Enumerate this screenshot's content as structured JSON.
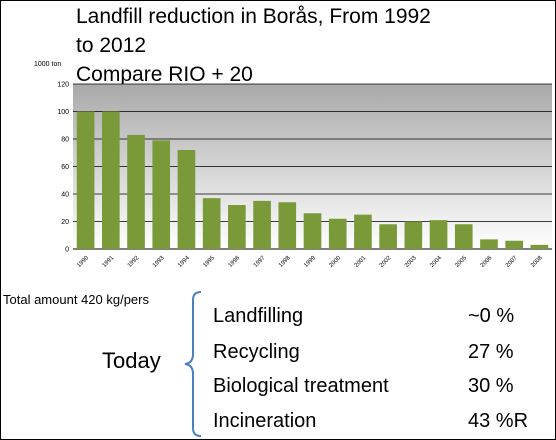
{
  "title_lines": [
    "Landfill reduction in Borås, From 1992",
    "to 2012",
    "Compare RIO + 20"
  ],
  "chart_data": {
    "type": "bar",
    "title": "",
    "ylabel": "1000 ton",
    "xlabel": "",
    "ylim": [
      0,
      120
    ],
    "yticks": [
      0,
      20,
      40,
      60,
      80,
      100,
      120
    ],
    "grid": true,
    "categories": [
      "1990",
      "1991",
      "1992",
      "1993",
      "1994",
      "1995",
      "1996",
      "1997",
      "1998",
      "1999",
      "2000",
      "2001",
      "2002",
      "2003",
      "2004",
      "2005",
      "2006",
      "2007",
      "2008"
    ],
    "values": [
      100,
      100,
      83,
      79,
      72,
      37,
      32,
      35,
      34,
      26,
      22,
      25,
      18,
      20,
      21,
      18,
      7,
      6,
      3
    ],
    "bar_color": "#7a9a3a"
  },
  "summary": {
    "total": "Total amount 420 kg/pers",
    "today": "Today",
    "rows": [
      {
        "label": "Landfilling",
        "value": "~0 %"
      },
      {
        "label": "Recycling",
        "value": "27 %"
      },
      {
        "label": "Biological treatment",
        "value": "30 %"
      },
      {
        "label": "Incineration",
        "value": "43 %R"
      }
    ],
    "brace_color": "#4a7fc1"
  }
}
